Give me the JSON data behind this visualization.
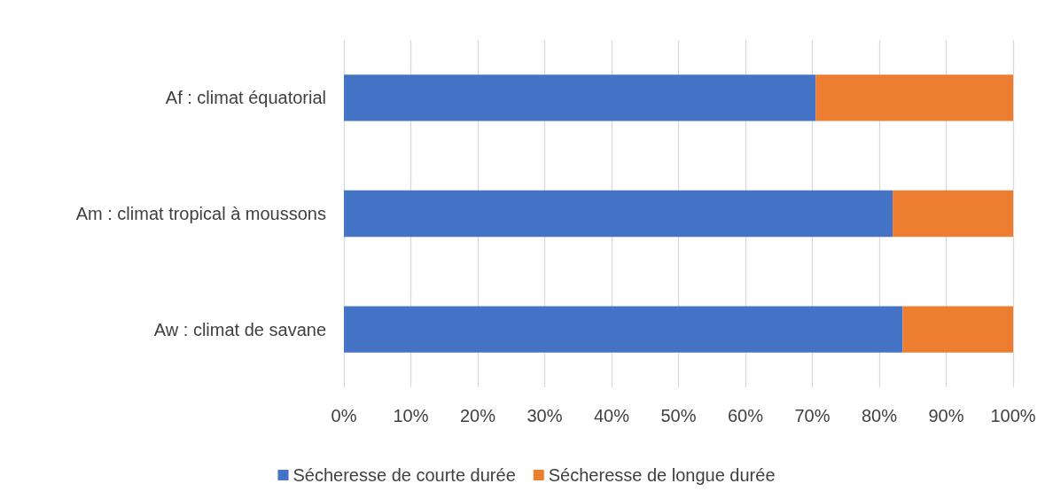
{
  "chart_data": {
    "type": "bar",
    "orientation": "horizontal",
    "stacked": true,
    "categories": [
      "Af : climat équatorial",
      "Am : climat tropical à moussons",
      "Aw : climat de savane"
    ],
    "series": [
      {
        "name": "Sécheresse de courte durée",
        "color": "#4472c4",
        "values": [
          70.5,
          82,
          83.5
        ]
      },
      {
        "name": "Sécheresse de longue durée",
        "color": "#ed7d31",
        "values": [
          29.5,
          18,
          16.5
        ]
      }
    ],
    "xlim": [
      0,
      100
    ],
    "xticks": [
      {
        "value": 0,
        "label": "0%"
      },
      {
        "value": 10,
        "label": "10%"
      },
      {
        "value": 20,
        "label": "20%"
      },
      {
        "value": 30,
        "label": "30%"
      },
      {
        "value": 40,
        "label": "40%"
      },
      {
        "value": 50,
        "label": "50%"
      },
      {
        "value": 60,
        "label": "60%"
      },
      {
        "value": 70,
        "label": "70%"
      },
      {
        "value": 80,
        "label": "80%"
      },
      {
        "value": 90,
        "label": "90%"
      },
      {
        "value": 100,
        "label": "100%"
      }
    ],
    "grid": "x",
    "legend": "bottom"
  }
}
